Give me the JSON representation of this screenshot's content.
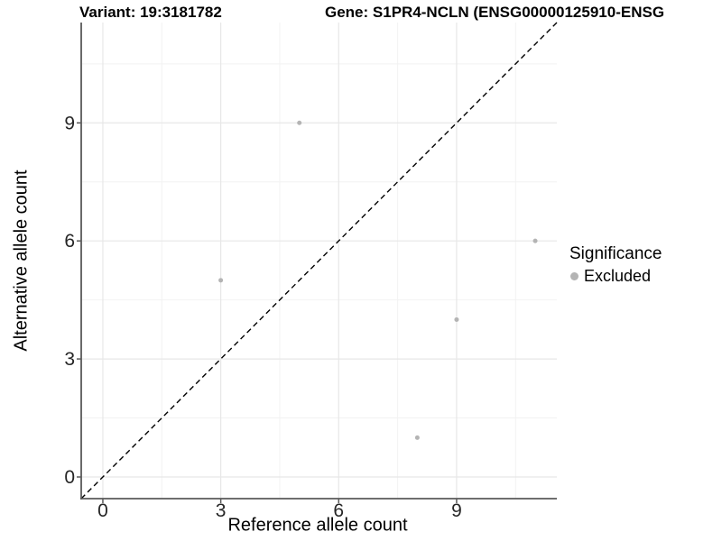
{
  "titles": {
    "variant": "Variant: 19:3181782",
    "gene": "Gene: S1PR4-NCLN (ENSG00000125910-ENSG"
  },
  "legend": {
    "title": "Significance",
    "entries": [
      {
        "label": "Excluded",
        "color": "#b4b4b4"
      }
    ]
  },
  "colors": {
    "background": "#ffffff",
    "axis_line": "#5a5a5a",
    "grid_major": "#e7e7e7",
    "grid_minor": "#f2f2f2",
    "tick_text": "#262626",
    "point": "#b4b4b4",
    "reference_line": "#000000"
  },
  "chart_data": {
    "type": "scatter",
    "title": "Variant: 19:3181782 — Gene: S1PR4-NCLN (ENSG00000125910-ENSG",
    "xlabel": "Reference allele count",
    "ylabel": "Alternative allele count",
    "xlim": [
      -0.55,
      11.55
    ],
    "ylim": [
      -0.55,
      11.55
    ],
    "x_ticks": [
      0,
      3,
      6,
      9
    ],
    "y_ticks": [
      0,
      3,
      6,
      9
    ],
    "x_minor_ticks": [
      1.5,
      4.5,
      7.5,
      10.5
    ],
    "y_minor_ticks": [
      1.5,
      4.5,
      7.5,
      10.5
    ],
    "grid": true,
    "legend_position": "right",
    "series": [
      {
        "name": "Excluded",
        "color": "#b4b4b4",
        "point_radius": 2.5,
        "points": [
          [
            3,
            5
          ],
          [
            5,
            9
          ],
          [
            8,
            1
          ],
          [
            9,
            4
          ],
          [
            11,
            6
          ]
        ]
      }
    ],
    "reference_line": {
      "slope": 1,
      "intercept": 0,
      "style": "dashed",
      "color": "#000000"
    }
  }
}
